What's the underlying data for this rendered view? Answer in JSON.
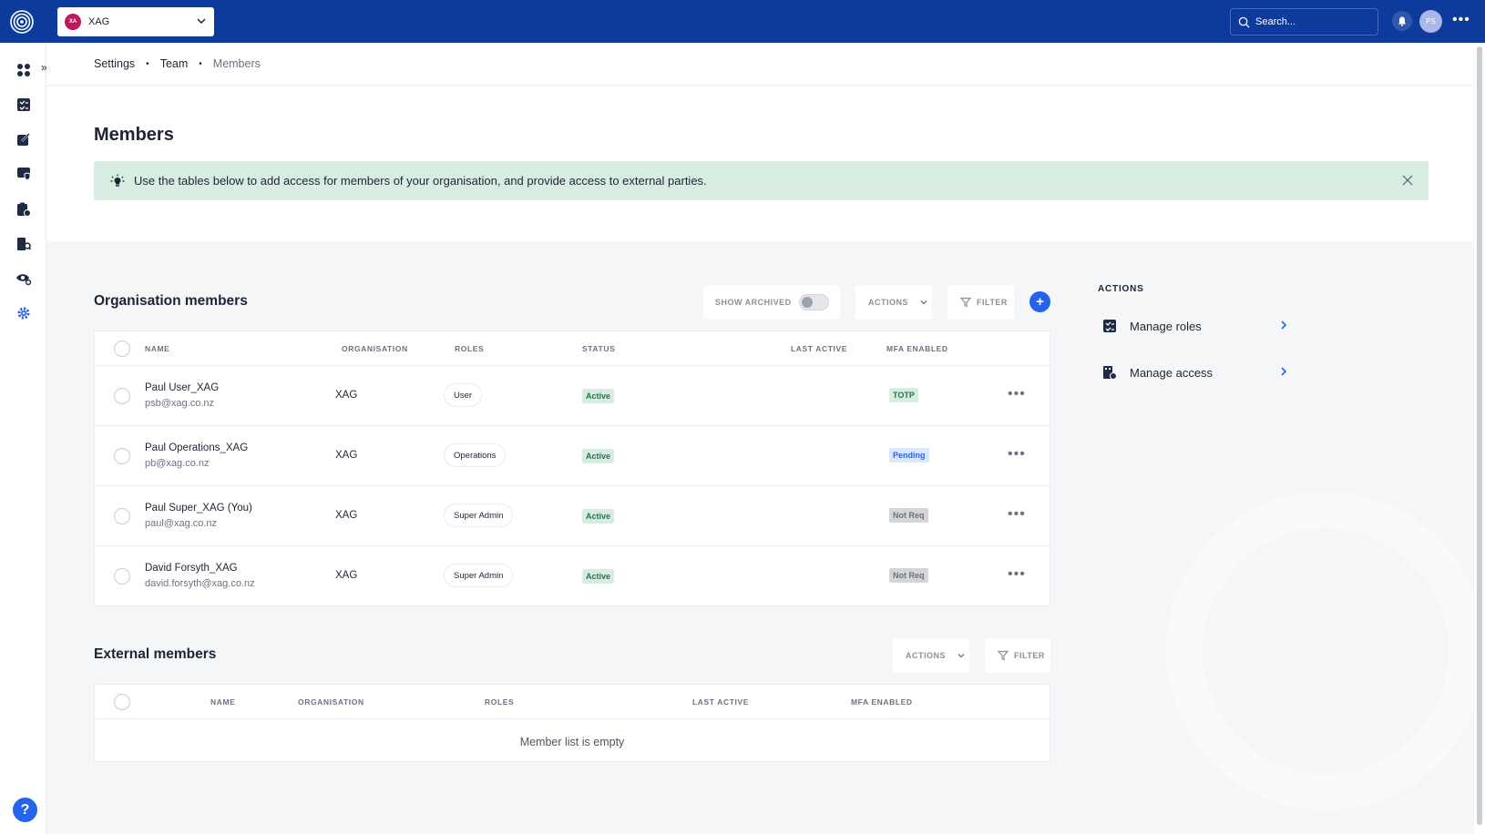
{
  "topbar": {
    "org_initials": "XA",
    "org_name": "XAG",
    "search_placeholder": "Search...",
    "user_initials": "PS"
  },
  "breadcrumb": {
    "items": [
      "Settings",
      "Team"
    ],
    "current": "Members"
  },
  "page": {
    "title": "Members",
    "banner_text": "Use the tables below to add access for members of your organisation, and provide access to external parties."
  },
  "org_members": {
    "title": "Organisation members",
    "show_archived_label": "SHOW ARCHIVED",
    "actions_label": "ACTIONS",
    "filter_label": "FILTER",
    "add_label": "+",
    "columns": [
      "NAME",
      "ORGANISATION",
      "ROLES",
      "STATUS",
      "LAST ACTIVE",
      "MFA ENABLED"
    ],
    "rows": [
      {
        "name": "Paul User_XAG",
        "email": "psb@xag.co.nz",
        "organisation": "XAG",
        "role": "User",
        "status": "Active",
        "mfa": "TOTP"
      },
      {
        "name": "Paul Operations_XAG",
        "email": "pb@xag.co.nz",
        "organisation": "XAG",
        "role": "Operations",
        "status": "Active",
        "mfa": "Pending"
      },
      {
        "name": "Paul Super_XAG (You)",
        "email": "paul@xag.co.nz",
        "organisation": "XAG",
        "role": "Super Admin",
        "status": "Active",
        "mfa": "Not Req"
      },
      {
        "name": "David Forsyth_XAG",
        "email": "david.forsyth@xag.co.nz",
        "organisation": "XAG",
        "role": "Super Admin",
        "status": "Active",
        "mfa": "Not Req"
      }
    ]
  },
  "external_members": {
    "title": "External members",
    "actions_label": "ACTIONS",
    "filter_label": "FILTER",
    "columns": [
      "NAME",
      "ORGANISATION",
      "ROLES",
      "LAST ACTIVE",
      "MFA ENABLED"
    ],
    "empty_text": "Member list is empty"
  },
  "side_actions": {
    "title": "ACTIONS",
    "items": [
      {
        "label": "Manage roles",
        "icon": "checklist-icon"
      },
      {
        "label": "Manage access",
        "icon": "building-lock-icon"
      }
    ]
  },
  "help_label": "?",
  "colors": {
    "topbar": "#0c3a9d",
    "accent": "#2563eb",
    "success_bg": "#d9ece2",
    "success_text": "#1b7a46"
  }
}
